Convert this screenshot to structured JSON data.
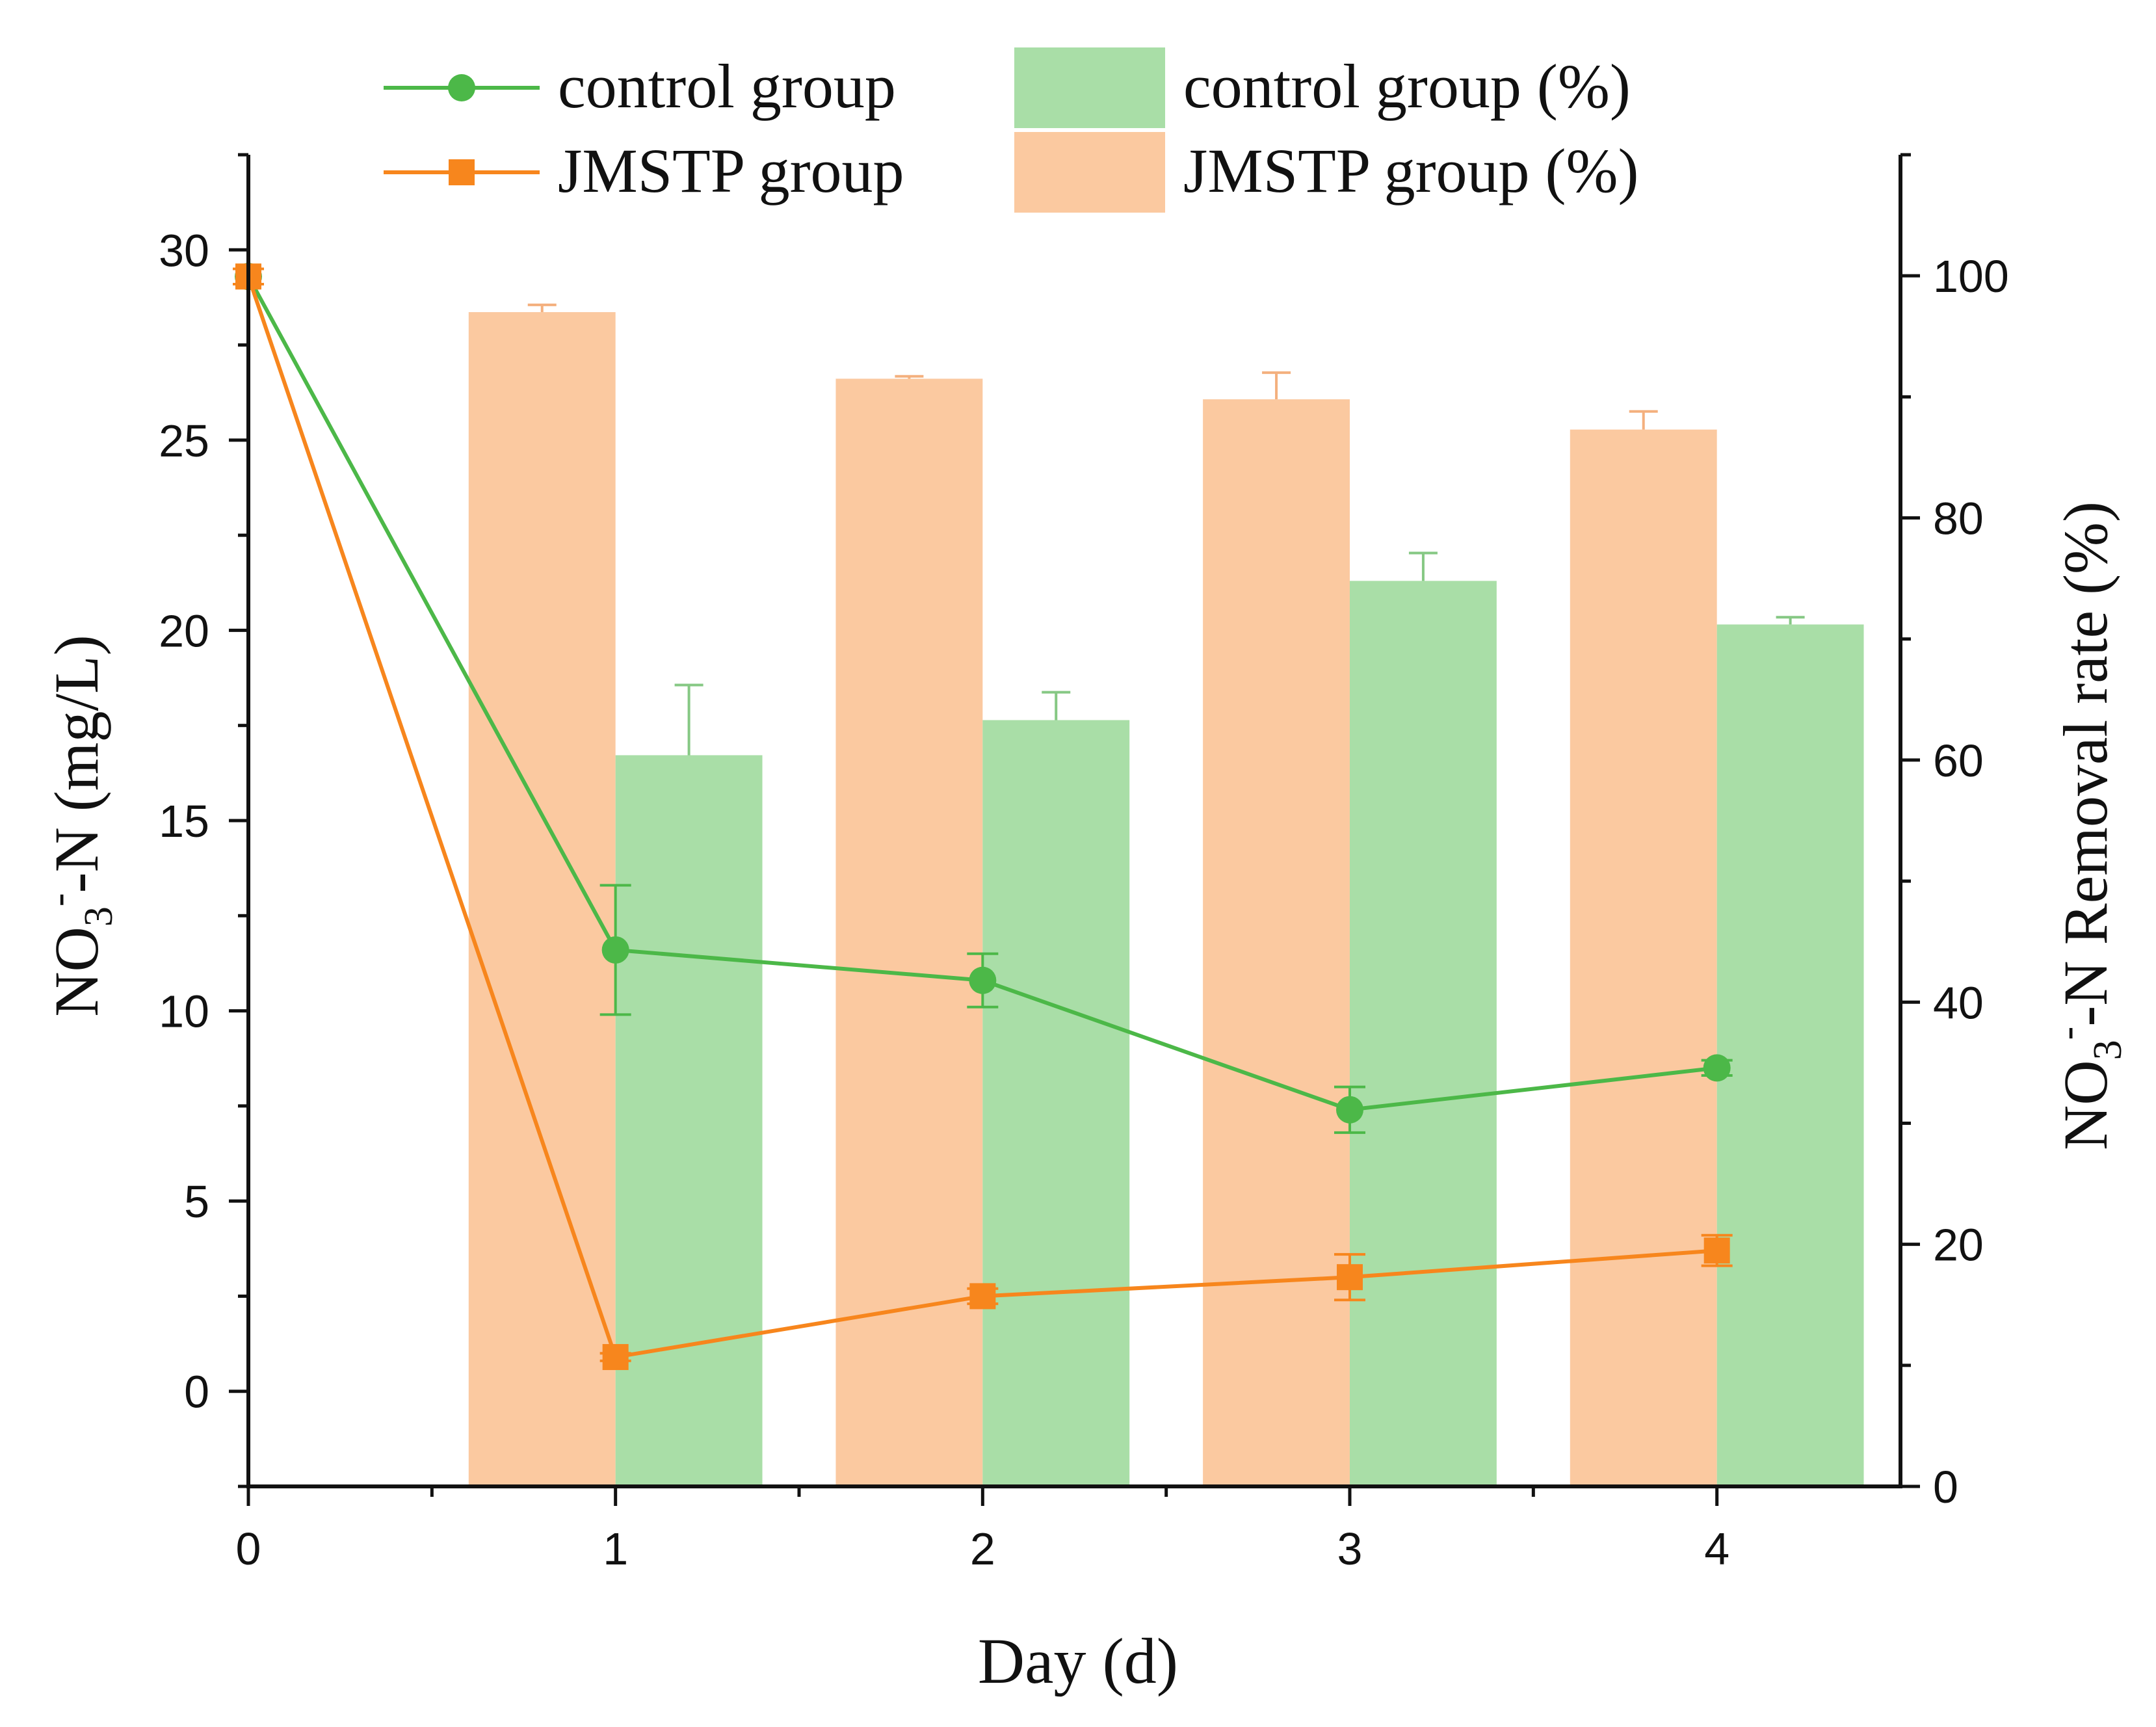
{
  "chart_data": {
    "type": "bar+line (dual axis)",
    "xlabel": "Day (d)",
    "ylabel_left": {
      "prefix": "NO",
      "sub": "3",
      "sup": "-",
      "suffix": "-N (mg/L)"
    },
    "ylabel_right": {
      "prefix": "NO",
      "sub": "3",
      "sup": "-",
      "suffix": "-N Removal rate (%)"
    },
    "x_ticks": [
      "0",
      "1",
      "2",
      "3",
      "4"
    ],
    "y_left_ticks": [
      "0",
      "5",
      "10",
      "15",
      "20",
      "25",
      "30"
    ],
    "y_right_ticks": [
      "0",
      "20",
      "40",
      "60",
      "80",
      "100"
    ],
    "xlim": [
      0,
      4.5
    ],
    "ylim_left": [
      -2.5,
      32.5
    ],
    "ylim_right": [
      0,
      110
    ],
    "lines": [
      {
        "name": "control group",
        "color": "#4cb848",
        "marker": "circle",
        "x": [
          0,
          1,
          2,
          3,
          4
        ],
        "y": [
          29.3,
          11.6,
          10.8,
          7.4,
          8.5
        ],
        "err": [
          0.2,
          1.7,
          0.7,
          0.6,
          0.2
        ]
      },
      {
        "name": "JMSTP group",
        "color": "#f7861d",
        "marker": "square",
        "x": [
          0,
          1,
          2,
          3,
          4
        ],
        "y": [
          29.3,
          0.9,
          2.5,
          3.0,
          3.7
        ],
        "err": [
          0.2,
          0.1,
          0.2,
          0.6,
          0.4
        ]
      }
    ],
    "bars": [
      {
        "name": "JMSTP group (%)",
        "color": "#fbc9a0",
        "x": [
          1,
          2,
          3,
          4
        ],
        "offset": -0.2,
        "values": [
          97,
          91.5,
          89.8,
          87.3
        ],
        "err": [
          0.6,
          0.2,
          2.2,
          1.5
        ]
      },
      {
        "name": "control group (%)",
        "color": "#a9dea7",
        "x": [
          1,
          2,
          3,
          4
        ],
        "offset": 0.2,
        "values": [
          60.4,
          63.3,
          74.8,
          71.2
        ],
        "err": [
          5.8,
          2.3,
          2.3,
          0.6
        ]
      }
    ],
    "legend": [
      {
        "label": "control group",
        "kind": "line",
        "series": 0
      },
      {
        "label": "JMSTP group",
        "kind": "line",
        "series": 1
      },
      {
        "label": "control group (%)",
        "kind": "bar",
        "series": 1
      },
      {
        "label": "JMSTP group (%)",
        "kind": "bar",
        "series": 0
      }
    ]
  }
}
